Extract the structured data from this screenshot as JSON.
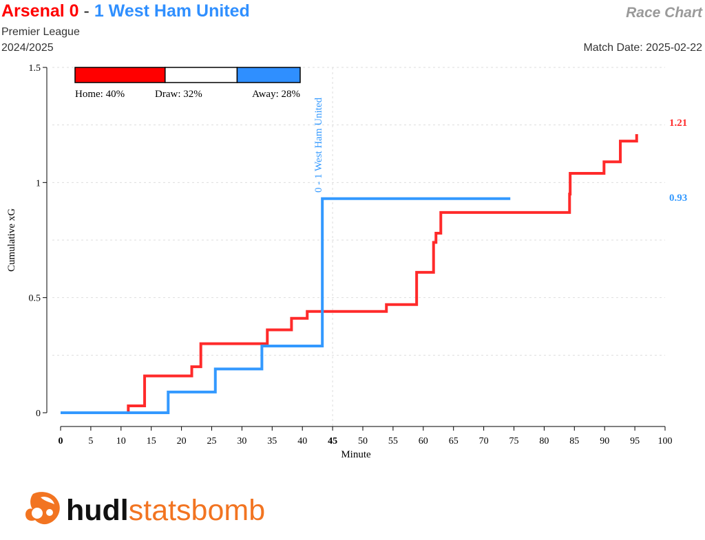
{
  "header": {
    "home_team": "Arsenal",
    "home_score": "0",
    "separator": "-",
    "away_score": "1",
    "away_team": "West Ham United",
    "chart_label": "Race Chart",
    "competition": "Premier League",
    "season": "2024/2025",
    "match_date": "Match Date: 2025-02-22"
  },
  "colors": {
    "home": "#ff2a2a",
    "away": "#3399ff",
    "grid": "#dddddd",
    "logo_orange": "#f27421"
  },
  "probability_bar": {
    "segments": [
      {
        "label": "Home: 40%",
        "value": 40,
        "color": "#ff0000"
      },
      {
        "label": "Draw: 32%",
        "value": 32,
        "color": "#ffffff"
      },
      {
        "label": "Away: 28%",
        "value": 28,
        "color": "#2f8fff"
      }
    ]
  },
  "logo": {
    "part1": "hudl",
    "part2": "statsbomb",
    "icon": "statsbomb-logo-icon"
  },
  "chart_data": {
    "type": "line",
    "line_shape": "step",
    "xlabel": "Minute",
    "ylabel": "Cumulative xG",
    "xlim": [
      0,
      100
    ],
    "ylim": [
      0,
      1.5
    ],
    "x_ticks": [
      0,
      5,
      10,
      15,
      20,
      25,
      30,
      35,
      40,
      45,
      50,
      55,
      60,
      65,
      70,
      75,
      80,
      85,
      90,
      95,
      100
    ],
    "x_tick_labels": [
      "0",
      "5",
      "10",
      "15",
      "20",
      "25",
      "30",
      "35",
      "40",
      "45",
      "50",
      "55",
      "60",
      "65",
      "70",
      "75",
      "80",
      "85",
      "90",
      "95",
      "100"
    ],
    "bold_x_ticks": [
      0,
      45
    ],
    "y_ticks": [
      0,
      0.5,
      1,
      1.5
    ],
    "y_tick_labels": [
      "0",
      "0.5",
      "1",
      "1.5"
    ],
    "grid": true,
    "reference_line_x": 45,
    "series": [
      {
        "team": "home",
        "color": "#ff2a2a",
        "end_label": "1.21",
        "points": [
          [
            0,
            0
          ],
          [
            11.2,
            0.03
          ],
          [
            13.9,
            0.16
          ],
          [
            21.7,
            0.2
          ],
          [
            23.2,
            0.3
          ],
          [
            34.2,
            0.36
          ],
          [
            38.2,
            0.41
          ],
          [
            40.8,
            0.44
          ],
          [
            53.9,
            0.47
          ],
          [
            58.9,
            0.61
          ],
          [
            61.7,
            0.74
          ],
          [
            62.1,
            0.78
          ],
          [
            62.9,
            0.87
          ],
          [
            84.2,
            0.95
          ],
          [
            84.3,
            1.04
          ],
          [
            89.9,
            1.09
          ],
          [
            92.6,
            1.18
          ],
          [
            95.3,
            1.21
          ]
        ],
        "end_x": 95.3
      },
      {
        "team": "away",
        "color": "#3399ff",
        "end_label": "0.93",
        "points": [
          [
            0,
            0
          ],
          [
            17.8,
            0.09
          ],
          [
            25.6,
            0.19
          ],
          [
            33.3,
            0.29
          ],
          [
            43.3,
            0.93
          ]
        ],
        "end_x": 74.4
      }
    ],
    "annotations": [
      {
        "x": 43.3,
        "text": "0 - 1 West Ham United",
        "color": "#3399ff",
        "orientation": "vertical"
      }
    ]
  }
}
